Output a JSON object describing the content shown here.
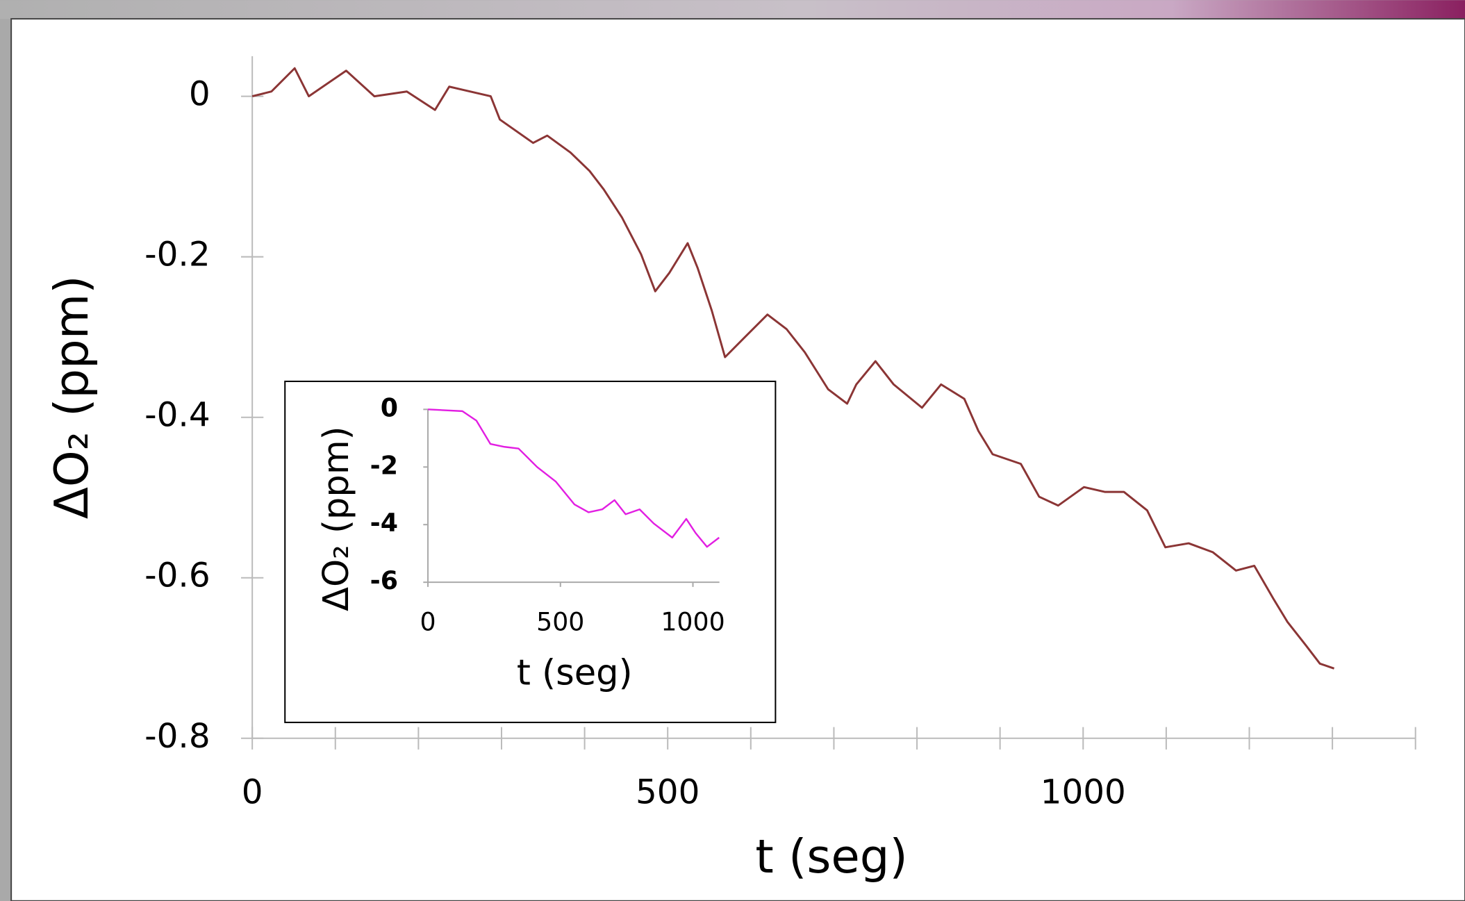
{
  "chart_data": [
    {
      "type": "line",
      "x_label": "t (seg)",
      "y_label": "ΔO₂ (ppm)",
      "xlim": [
        0,
        1400
      ],
      "ylim": [
        -0.8,
        0.05
      ],
      "xticks": [
        0,
        500,
        1000
      ],
      "xminor_ticks": [
        100,
        200,
        300,
        400,
        600,
        700,
        800,
        900,
        1100,
        1200,
        1300,
        1400
      ],
      "yticks": [
        0,
        -0.2,
        -0.4,
        -0.6,
        -0.8
      ],
      "series": [
        {
          "color": "#8b3535",
          "x": [
            0,
            23,
            51,
            68,
            113,
            147,
            186,
            220,
            237,
            287,
            298,
            338,
            355,
            383,
            406,
            423,
            445,
            468,
            485,
            502,
            524,
            536,
            553,
            569,
            592,
            620,
            643,
            665,
            693,
            716,
            727,
            750,
            772,
            806,
            829,
            857,
            874,
            891,
            925,
            947,
            970,
            1001,
            1026,
            1049,
            1077,
            1099,
            1127,
            1156,
            1184,
            1206,
            1229,
            1246,
            1268,
            1285,
            1302
          ],
          "values": [
            0,
            0.006,
            0.035,
            0,
            0.032,
            0,
            0.006,
            -0.017,
            0.012,
            0,
            -0.029,
            -0.058,
            -0.049,
            -0.07,
            -0.093,
            -0.116,
            -0.151,
            -0.197,
            -0.243,
            -0.22,
            -0.183,
            -0.214,
            -0.267,
            -0.325,
            -0.301,
            -0.272,
            -0.29,
            -0.319,
            -0.365,
            -0.383,
            -0.359,
            -0.33,
            -0.359,
            -0.388,
            -0.359,
            -0.377,
            -0.417,
            -0.446,
            -0.458,
            -0.499,
            -0.51,
            -0.487,
            -0.493,
            -0.493,
            -0.516,
            -0.562,
            -0.557,
            -0.568,
            -0.591,
            -0.585,
            -0.626,
            -0.655,
            -0.684,
            -0.707,
            -0.713
          ]
        }
      ]
    },
    {
      "type": "line",
      "x_label": "t (seg)",
      "y_label": "ΔO₂ (ppm)",
      "xlim": [
        0,
        1100
      ],
      "ylim": [
        -6,
        0
      ],
      "xticks": [
        0,
        500,
        1000
      ],
      "yticks": [
        0,
        -2,
        -4,
        -6
      ],
      "series": [
        {
          "color": "#e21ee2",
          "x": [
            0,
            130,
            183,
            236,
            289,
            342,
            412,
            482,
            553,
            606,
            658,
            704,
            746,
            799,
            852,
            922,
            975,
            1010,
            1053,
            1099
          ],
          "values": [
            0,
            -0.06,
            -0.39,
            -1.2,
            -1.3,
            -1.36,
            -2.0,
            -2.5,
            -3.3,
            -3.57,
            -3.47,
            -3.15,
            -3.64,
            -3.47,
            -3.96,
            -4.45,
            -3.8,
            -4.29,
            -4.77,
            -4.45
          ]
        }
      ]
    }
  ]
}
